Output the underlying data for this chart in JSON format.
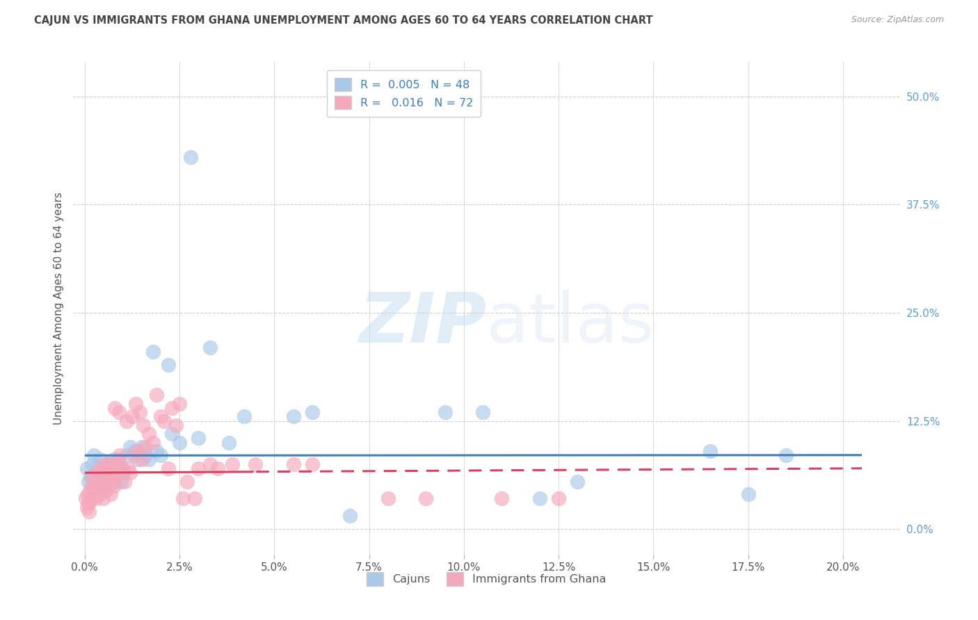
{
  "title": "CAJUN VS IMMIGRANTS FROM GHANA UNEMPLOYMENT AMONG AGES 60 TO 64 YEARS CORRELATION CHART",
  "source": "Source: ZipAtlas.com",
  "xlabel_ticks": [
    0.0,
    2.5,
    5.0,
    7.5,
    10.0,
    12.5,
    15.0,
    17.5,
    20.0
  ],
  "ylabel_ticks": [
    0.0,
    12.5,
    25.0,
    37.5,
    50.0
  ],
  "xlim": [
    -0.3,
    21.5
  ],
  "ylim": [
    -3.0,
    54.0
  ],
  "ylabel_label": "Unemployment Among Ages 60 to 64 years",
  "cajun_R": "0.005",
  "cajun_N": "48",
  "ghana_R": "0.016",
  "ghana_N": "72",
  "legend_labels": [
    "Cajuns",
    "Immigrants from Ghana"
  ],
  "cajun_color": "#aac8e8",
  "ghana_color": "#f5a8bc",
  "cajun_line_color": "#3a7fc1",
  "ghana_line_color": "#d94060",
  "cajun_trend_start": 8.5,
  "cajun_trend_end": 8.5,
  "ghana_trend_start": 6.5,
  "ghana_trend_end": 7.2,
  "watermark_zip": "ZIP",
  "watermark_atlas": "atlas",
  "background_color": "#ffffff",
  "grid_color": "#c8c8c8",
  "title_color": "#444444",
  "source_color": "#999999",
  "right_axis_color": "#5a9fd4",
  "bottom_legend_color": "#555555"
}
